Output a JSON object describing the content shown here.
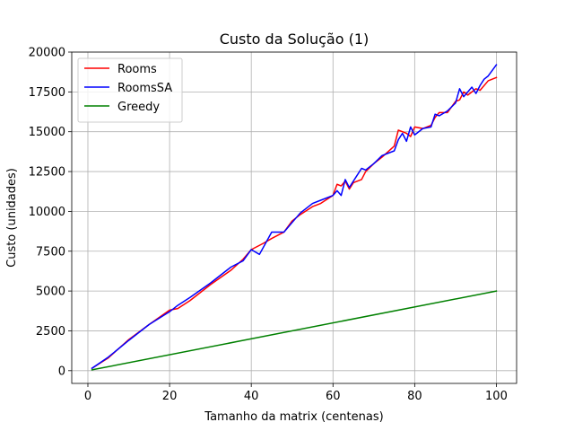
{
  "chart_data": {
    "type": "line",
    "title": "Custo da Solução (1)",
    "xlabel": "Tamanho da matrix (centenas)",
    "ylabel": "Custo (unidades)",
    "xlim": [
      -3.95,
      104.95
    ],
    "ylim": [
      -800,
      20000
    ],
    "xticks": [
      0,
      20,
      40,
      60,
      80,
      100
    ],
    "yticks": [
      0,
      2500,
      5000,
      7500,
      10000,
      12500,
      15000,
      17500,
      20000
    ],
    "grid": true,
    "legend_position": "top-left",
    "series": [
      {
        "name": "Rooms",
        "color": "#ff0000",
        "x": [
          1,
          5,
          10,
          15,
          20,
          22,
          25,
          30,
          35,
          38,
          40,
          43,
          45,
          48,
          50,
          52,
          55,
          57,
          60,
          61,
          62,
          63,
          64,
          65,
          67,
          68,
          70,
          72,
          75,
          76,
          78,
          79,
          80,
          82,
          84,
          85,
          86,
          88,
          90,
          91,
          92,
          93,
          94,
          95,
          96,
          98,
          100
        ],
        "y": [
          150,
          800,
          1950,
          2900,
          3800,
          3900,
          4400,
          5400,
          6300,
          7000,
          7600,
          8000,
          8300,
          8700,
          9400,
          9800,
          10300,
          10500,
          11000,
          11700,
          11600,
          11900,
          11400,
          11800,
          12000,
          12500,
          13000,
          13400,
          14100,
          15100,
          14900,
          14700,
          15300,
          15200,
          15400,
          15900,
          16200,
          16200,
          16900,
          17000,
          17500,
          17300,
          17500,
          17700,
          17600,
          18200,
          18400
        ]
      },
      {
        "name": "RoomsSA",
        "color": "#0000ff",
        "x": [
          1,
          5,
          10,
          15,
          20,
          22,
          25,
          30,
          35,
          38,
          40,
          42,
          45,
          48,
          50,
          52,
          55,
          57,
          60,
          61,
          62,
          63,
          64,
          65,
          67,
          68,
          70,
          72,
          75,
          76,
          77,
          78,
          79,
          80,
          82,
          84,
          85,
          86,
          88,
          90,
          91,
          92,
          93,
          94,
          95,
          96,
          97,
          98,
          100
        ],
        "y": [
          150,
          850,
          1900,
          2900,
          3700,
          4100,
          4600,
          5500,
          6500,
          6900,
          7600,
          7300,
          8700,
          8700,
          9300,
          9900,
          10500,
          10700,
          11000,
          11300,
          11000,
          12000,
          11500,
          11900,
          12700,
          12600,
          13000,
          13500,
          13800,
          14500,
          14900,
          14400,
          15300,
          14800,
          15200,
          15300,
          16100,
          16000,
          16300,
          16800,
          17700,
          17200,
          17500,
          17800,
          17400,
          17900,
          18300,
          18500,
          19200
        ]
      },
      {
        "name": "Greedy",
        "color": "#008000",
        "x": [
          1,
          100
        ],
        "y": [
          50,
          5000
        ]
      }
    ]
  }
}
